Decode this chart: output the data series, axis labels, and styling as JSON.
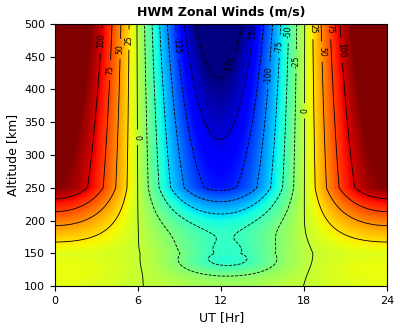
{
  "title": "HWM Zonal Winds (m/s)",
  "xlabel": "UT [Hr]",
  "ylabel": "Altitude [km]",
  "xlim": [
    0,
    24
  ],
  "ylim": [
    100,
    500
  ],
  "xticks": [
    0,
    6,
    12,
    18,
    24
  ],
  "yticks": [
    100,
    150,
    200,
    250,
    300,
    350,
    400,
    450,
    500
  ],
  "contour_levels": [
    -175,
    -150,
    -125,
    -100,
    -75,
    -50,
    -25,
    0,
    25,
    50,
    75,
    100
  ],
  "vmin": -175,
  "vmax": 125,
  "figsize": [
    4.0,
    3.3
  ],
  "dpi": 100
}
